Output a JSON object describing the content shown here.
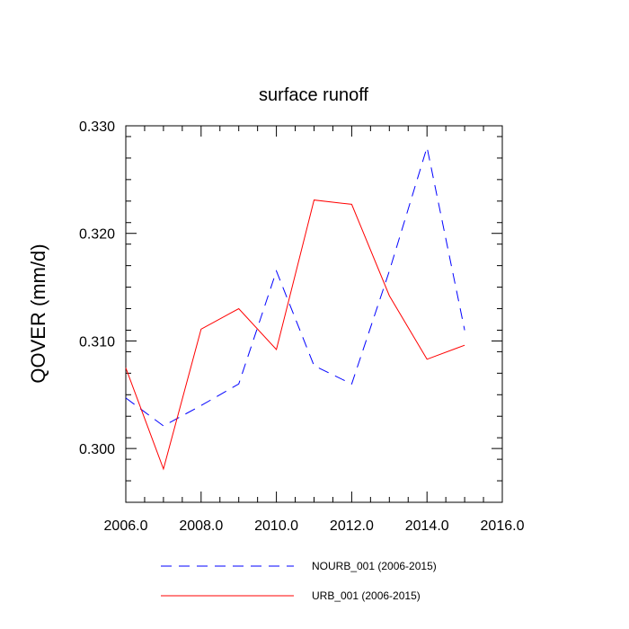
{
  "chart_data": {
    "type": "line",
    "title": "surface runoff",
    "xlabel": "",
    "ylabel": "QOVER  (mm/d)",
    "xlim": [
      2006,
      2016
    ],
    "ylim": [
      0.295,
      0.33
    ],
    "x_ticks": [
      2006,
      2008,
      2010,
      2012,
      2014,
      2016
    ],
    "x_tick_labels": [
      "2006.0",
      "2008.0",
      "2010.0",
      "2012.0",
      "2014.0",
      "2016.0"
    ],
    "y_ticks": [
      0.3,
      0.31,
      0.32,
      0.33
    ],
    "y_tick_labels": [
      "0.300",
      "0.310",
      "0.320",
      "0.330"
    ],
    "grid": false,
    "legend_position": "bottom",
    "series": [
      {
        "name": "NOURB_001 (2006-2015)",
        "color": "#0000ff",
        "dash": "dashed",
        "x": [
          2006,
          2007,
          2008,
          2009,
          2010,
          2011,
          2012,
          2013,
          2014,
          2015
        ],
        "values": [
          0.3047,
          0.3021,
          0.304,
          0.306,
          0.3165,
          0.3077,
          0.306,
          0.3165,
          0.328,
          0.311
        ]
      },
      {
        "name": "URB_001 (2006-2015)",
        "color": "#ff0000",
        "dash": "solid",
        "x": [
          2006,
          2007,
          2008,
          2009,
          2010,
          2011,
          2012,
          2013,
          2014,
          2015
        ],
        "values": [
          0.3075,
          0.2981,
          0.3111,
          0.313,
          0.3092,
          0.3231,
          0.3227,
          0.3142,
          0.3083,
          0.3096
        ]
      }
    ]
  }
}
